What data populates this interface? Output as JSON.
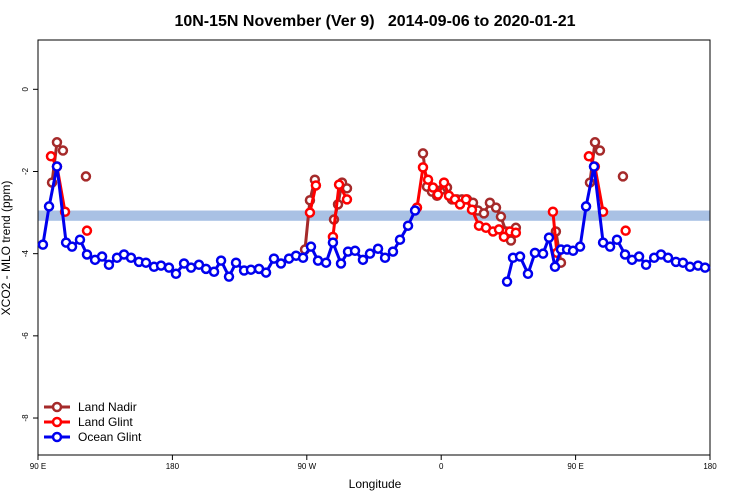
{
  "chart_data": {
    "type": "line",
    "title": "10N-15N November (Ver 9)   2014-09-06 to 2020-01-21",
    "x_label": "Longitude",
    "y_label": "XCO2 - MLO trend (ppm)",
    "xlim": [
      90,
      540
    ],
    "ylim": [
      -8.9,
      1.2
    ],
    "xticks": [
      {
        "value": 90,
        "label": "90 E"
      },
      180,
      {
        "value": 270,
        "label": "90 W"
      },
      {
        "value": 360,
        "label": "0"
      },
      {
        "value": 450,
        "label": "90 E"
      },
      {
        "value": 540,
        "label": "180"
      }
    ],
    "yticks": [
      0,
      -2,
      -4,
      -6,
      -8
    ],
    "reference_band": {
      "ylim": [
        -3.2,
        -2.95
      ],
      "color": "#a9c1e4"
    },
    "legend": "bottom-left",
    "series": [
      {
        "name": "Land Nadir",
        "color": "#a52a2a",
        "x": [
          99.4,
          102.7,
          106.7,
          null,
          122.1,
          null,
          268.8,
          272.1,
          275.4,
          null,
          288.2,
          290.9,
          293.6,
          296.9,
          null,
          347.8,
          350.5,
          353.8,
          357.2,
          360.5,
          363.9,
          367.2,
          370.6,
          373.9,
          377.3,
          381.3,
          384.6,
          388.6,
          392.6,
          396.7,
          400,
          403.4,
          406.7,
          410,
          null,
          436.8,
          440.2,
          null,
          459.6,
          463,
          466.3,
          null,
          481.7
        ],
        "values": [
          -2.27,
          -1.29,
          -1.49,
          null,
          -2.12,
          null,
          -3.9,
          -2.7,
          -2.2,
          null,
          -3.17,
          -2.8,
          -2.27,
          -2.41,
          null,
          -1.56,
          -2.37,
          -2.49,
          -2.59,
          -2.44,
          -2.39,
          -2.68,
          -2.68,
          -2.68,
          -2.68,
          -2.76,
          -2.95,
          -3.02,
          -2.76,
          -2.88,
          -3.1,
          -3.46,
          -3.68,
          -3.37,
          null,
          -3.46,
          -4.22,
          null,
          -2.27,
          -1.29,
          -1.49,
          null,
          -2.12
        ]
      },
      {
        "name": "Land Glint",
        "color": "#ff0000",
        "x": [
          98.7,
          102.7,
          108.1,
          null,
          122.8,
          null,
          272.1,
          276.1,
          null,
          287.5,
          291.6,
          296.9,
          null,
          343.8,
          347.8,
          351.2,
          354.5,
          357.8,
          361.9,
          365.2,
          369.2,
          372.6,
          376.6,
          380.6,
          385.3,
          390,
          394.7,
          398.7,
          402,
          406,
          410,
          null,
          434.8,
          437.5,
          null,
          458.9,
          462.9,
          468.4,
          null,
          483.5
        ],
        "values": [
          -1.63,
          -1.88,
          -2.98,
          null,
          -3.44,
          null,
          -3.0,
          -2.34,
          null,
          -3.59,
          -2.32,
          -2.68,
          null,
          -2.88,
          -1.9,
          -2.2,
          -2.39,
          -2.56,
          -2.27,
          -2.59,
          -2.68,
          -2.8,
          -2.68,
          -2.93,
          -3.32,
          -3.37,
          -3.46,
          -3.41,
          -3.59,
          -3.46,
          -3.49,
          null,
          -2.98,
          -3.98,
          null,
          -1.63,
          -1.88,
          -2.98,
          null,
          -3.44
        ]
      },
      {
        "name": "Ocean Glint",
        "color": "#0000ee",
        "x": [
          93.3,
          97.4,
          102.7,
          108.8,
          112.8,
          118.1,
          122.8,
          128.2,
          132.9,
          137.5,
          142.9,
          147.6,
          152.3,
          157.6,
          162.3,
          167.7,
          172.4,
          177.7,
          182.4,
          187.8,
          192.5,
          197.8,
          202.5,
          207.9,
          212.6,
          217.9,
          222.6,
          228,
          232.6,
          238,
          242.7,
          248,
          252.7,
          258.1,
          262.8,
          267.5,
          272.8,
          277.5,
          282.9,
          287.5,
          292.9,
          297.6,
          302.3,
          307.6,
          312.3,
          317.7,
          322.4,
          327.7,
          332.4,
          337.8,
          342.5,
          null,
          404.1,
          408.1,
          412.8,
          418.1,
          422.8,
          428.2,
          432.2,
          436.2,
          440.2,
          444.3,
          448.3,
          453,
          457,
          462.3,
          468.4,
          473.1,
          477.7,
          483.1,
          487.8,
          492.5,
          497.2,
          502.6,
          507.2,
          511.9,
          517.2,
          521.9,
          526.6,
          532,
          536.7
        ],
        "values": [
          -3.78,
          -2.85,
          -1.88,
          -3.73,
          -3.83,
          -3.66,
          -4.02,
          -4.15,
          -4.07,
          -4.27,
          -4.1,
          -4.02,
          -4.1,
          -4.2,
          -4.22,
          -4.32,
          -4.29,
          -4.34,
          -4.49,
          -4.24,
          -4.34,
          -4.27,
          -4.37,
          -4.44,
          -4.17,
          -4.56,
          -4.22,
          -4.41,
          -4.39,
          -4.37,
          -4.46,
          -4.12,
          -4.24,
          -4.12,
          -4.05,
          -4.1,
          -3.83,
          -4.17,
          -4.22,
          -3.73,
          -4.24,
          -3.95,
          -3.93,
          -4.15,
          -4.0,
          -3.88,
          -4.1,
          -3.95,
          -3.66,
          -3.32,
          -2.95,
          null,
          -4.68,
          -4.1,
          -4.07,
          -4.49,
          -3.98,
          -4.0,
          -3.61,
          -4.32,
          -3.9,
          -3.9,
          -3.93,
          -3.83,
          -2.85,
          -1.88,
          -3.73,
          -3.83,
          -3.66,
          -4.02,
          -4.15,
          -4.07,
          -4.27,
          -4.1,
          -4.02,
          -4.1,
          -4.2,
          -4.22,
          -4.32,
          -4.29,
          -4.34
        ]
      }
    ]
  }
}
